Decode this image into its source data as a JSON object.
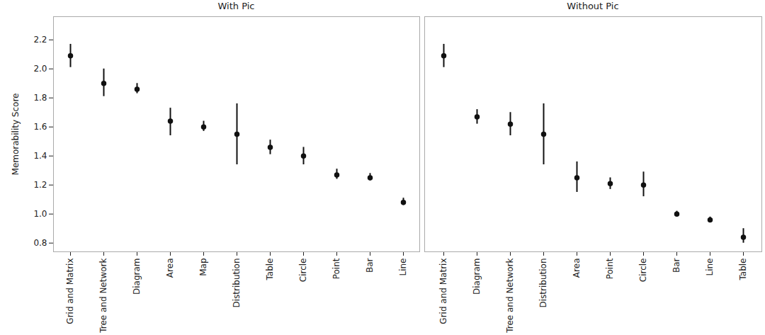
{
  "chart_data": [
    {
      "type": "scatter",
      "title": "With Pic",
      "y_label": "Memorability Score",
      "categories": [
        "Grid and Matrix",
        "Tree and Network",
        "Diagram",
        "Area",
        "Map",
        "Distribution",
        "Table",
        "Circle",
        "Point",
        "Bar",
        "Line"
      ],
      "values": [
        2.09,
        1.9,
        1.86,
        1.64,
        1.6,
        1.55,
        1.46,
        1.4,
        1.27,
        1.25,
        1.08
      ],
      "error_low": [
        2.01,
        1.81,
        1.83,
        1.54,
        1.57,
        1.34,
        1.41,
        1.34,
        1.24,
        1.23,
        1.06
      ],
      "error_high": [
        2.17,
        2.0,
        1.9,
        1.73,
        1.64,
        1.76,
        1.51,
        1.46,
        1.31,
        1.28,
        1.11
      ],
      "color": "#111111",
      "marker": "circle",
      "ylim": [
        0.74,
        2.36
      ],
      "yticks": [
        0.8,
        {
          "value": 1,
          "label": "1.0"
        },
        1.2,
        1.4,
        1.6,
        1.8,
        {
          "value": 2,
          "label": "2.0"
        },
        2.2
      ]
    },
    {
      "type": "scatter",
      "title": "Without Pic",
      "categories": [
        "Grid and Matrix",
        "Diagram",
        "Tree and Network",
        "Distribution",
        "Area",
        "Point",
        "Circle",
        "Bar",
        "Line",
        "Table"
      ],
      "values": [
        2.09,
        1.67,
        1.62,
        1.55,
        1.25,
        1.21,
        1.2,
        1.0,
        0.96,
        0.84
      ],
      "error_low": [
        2.01,
        1.62,
        1.54,
        1.34,
        1.15,
        1.17,
        1.12,
        0.99,
        0.94,
        0.8
      ],
      "error_high": [
        2.17,
        1.72,
        1.7,
        1.76,
        1.36,
        1.25,
        1.29,
        1.02,
        0.98,
        0.9
      ],
      "color": "#111111",
      "marker": "circle",
      "ylim": [
        0.74,
        2.36
      ],
      "tick_labels": "x"
    }
  ]
}
